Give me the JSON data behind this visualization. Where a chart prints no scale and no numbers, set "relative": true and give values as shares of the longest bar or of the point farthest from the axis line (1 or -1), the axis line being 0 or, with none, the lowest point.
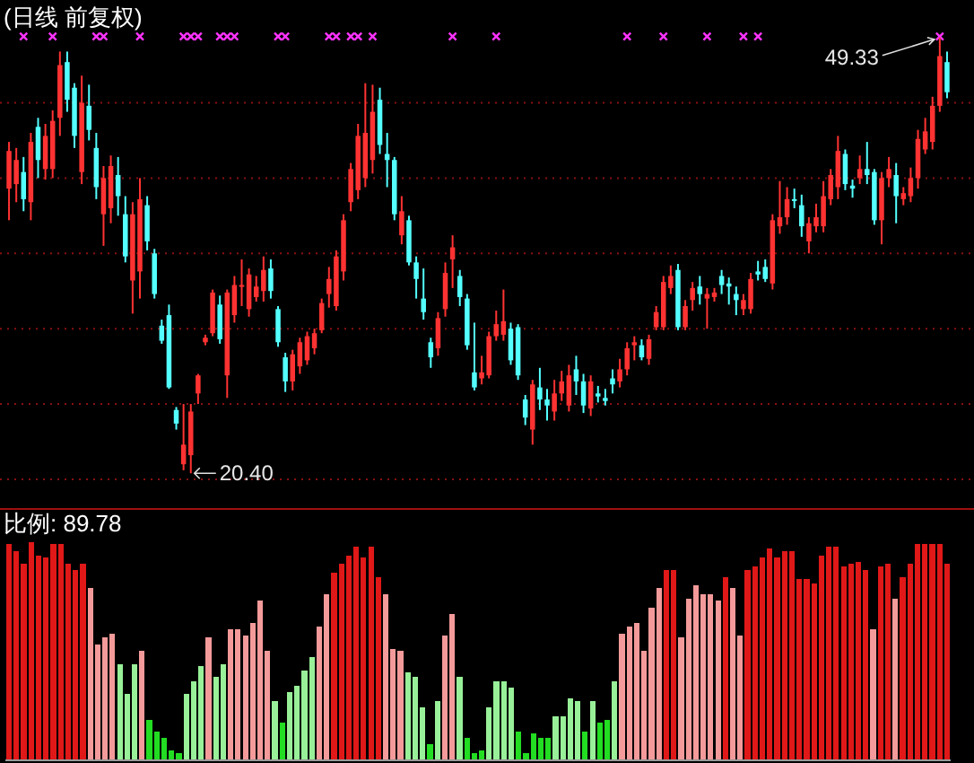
{
  "chart_data": [
    {
      "type": "candlestick",
      "title": "(日线 前复权)",
      "categories": [
        null,
        null,
        null,
        null,
        null,
        null,
        null,
        null,
        null,
        null,
        null,
        null,
        null,
        null,
        null,
        null,
        null,
        null,
        null,
        null,
        null,
        null,
        null,
        null,
        null,
        null,
        null,
        null,
        null,
        null,
        null,
        null,
        null,
        null,
        null,
        null,
        null,
        null,
        null,
        null,
        null,
        null,
        null,
        null,
        null,
        null,
        null,
        null,
        null,
        null,
        null,
        null,
        null,
        null,
        null,
        null,
        null,
        null,
        null,
        null,
        null,
        null,
        null,
        null,
        null,
        null,
        null,
        null,
        null,
        null,
        null,
        null,
        null,
        null,
        null,
        null,
        null,
        null,
        null,
        null,
        null,
        null,
        null,
        null,
        null,
        null,
        null,
        null,
        null,
        null,
        null,
        null,
        null,
        null,
        null,
        null,
        null,
        null,
        null,
        null,
        null,
        null,
        null,
        null,
        null,
        null,
        null,
        null,
        null,
        null,
        null,
        null,
        null,
        null,
        null,
        null,
        null,
        null,
        null,
        null,
        null,
        null,
        null,
        null,
        null,
        null,
        null,
        null,
        null,
        null
      ],
      "ohlc": [
        [
          39.3,
          42.4,
          37.2,
          41.8
        ],
        [
          39.6,
          42,
          38.4,
          41.2
        ],
        [
          40.4,
          41.4,
          37.8,
          38.6
        ],
        [
          38.4,
          43,
          37.2,
          42.4
        ],
        [
          43.4,
          44,
          40,
          41.2
        ],
        [
          40.6,
          43.6,
          39.9,
          42.8
        ],
        [
          40.6,
          44.5,
          40,
          43.8
        ],
        [
          44,
          48.4,
          42.8,
          47.5
        ],
        [
          47.7,
          48.4,
          44.4,
          45.2
        ],
        [
          46,
          46.3,
          42,
          42.8
        ],
        [
          40.4,
          46.8,
          39.6,
          45
        ],
        [
          44.8,
          46.2,
          42.5,
          43.2
        ],
        [
          42,
          43,
          38.6,
          39.4
        ],
        [
          37.6,
          40.8,
          35.5,
          40
        ],
        [
          38,
          41.5,
          37,
          40.8
        ],
        [
          40.2,
          41.4,
          37.5,
          38.8
        ],
        [
          37.6,
          38.8,
          34.4,
          34.8
        ],
        [
          33.2,
          38.4,
          31,
          37.6
        ],
        [
          33.8,
          40,
          32,
          38.6
        ],
        [
          38.2,
          38.8,
          35.2,
          35.8
        ],
        [
          35,
          35.3,
          32,
          32.3
        ],
        [
          30.2,
          30.6,
          29,
          29.2
        ],
        [
          30.9,
          31.6,
          26,
          26.1
        ],
        [
          24.6,
          24.8,
          23.3,
          23.7
        ],
        [
          21,
          25,
          20.6,
          22.3
        ],
        [
          21.6,
          25,
          20.4,
          24.5
        ],
        [
          25.7,
          27,
          25,
          26.9
        ],
        [
          29.1,
          29.6,
          28.9,
          29.4
        ],
        [
          29.7,
          32.6,
          29.5,
          32.4
        ],
        [
          31.6,
          32.2,
          29,
          29.3
        ],
        [
          26.9,
          32.6,
          25.4,
          32.4
        ],
        [
          30.9,
          33.5,
          30.4,
          32.9
        ],
        [
          32.8,
          34.6,
          31.5,
          32.9
        ],
        [
          31.3,
          34,
          30.8,
          33.6
        ],
        [
          32.1,
          33.5,
          31.8,
          32.8
        ],
        [
          32.5,
          34.8,
          31.8,
          33.9
        ],
        [
          34,
          34.6,
          32,
          32.5
        ],
        [
          31.3,
          31.5,
          28.8,
          29.1
        ],
        [
          28.1,
          28.4,
          25.8,
          26.5
        ],
        [
          26.5,
          28.6,
          25.9,
          28.3
        ],
        [
          27.5,
          29.4,
          27,
          29.1
        ],
        [
          27.9,
          29.8,
          27.6,
          29.5
        ],
        [
          28.7,
          30,
          28.3,
          29.7
        ],
        [
          29.9,
          32,
          29.7,
          31.7
        ],
        [
          32.3,
          34.1,
          31.4,
          33.3
        ],
        [
          31.5,
          35.2,
          31.2,
          34.8
        ],
        [
          33.8,
          37.6,
          33.2,
          37.2
        ],
        [
          38.4,
          41,
          37.8,
          40.6
        ],
        [
          39.2,
          43.6,
          38.6,
          42.8
        ],
        [
          40,
          46.3,
          39.4,
          43
        ],
        [
          41.2,
          46.2,
          40.3,
          44.4
        ],
        [
          45.2,
          46,
          41.6,
          42.2
        ],
        [
          41.6,
          43,
          39.4,
          41.2
        ],
        [
          41.2,
          41.4,
          37.2,
          37.6
        ],
        [
          36.2,
          38.8,
          35.6,
          37.8
        ],
        [
          37.2,
          37.5,
          34.2,
          34.4
        ],
        [
          34.4,
          34.8,
          32,
          33.3
        ],
        [
          32,
          34,
          30.6,
          31.1
        ],
        [
          29.1,
          29.4,
          27.4,
          28.1
        ],
        [
          28.7,
          31.1,
          28.2,
          30.7
        ],
        [
          31.3,
          34.4,
          30.8,
          33.7
        ],
        [
          34.6,
          36.2,
          32.7,
          35.4
        ],
        [
          33.5,
          33.9,
          31.5,
          32.1
        ],
        [
          32,
          32.3,
          28.6,
          28.9
        ],
        [
          27.1,
          30.4,
          25.9,
          26.1
        ],
        [
          26.7,
          28.2,
          26.3,
          27.1
        ],
        [
          26.9,
          29.8,
          26.7,
          29.5
        ],
        [
          29.5,
          31.2,
          29.2,
          30.3
        ],
        [
          29.6,
          32.6,
          29.2,
          30.5
        ],
        [
          30,
          30.4,
          27.6,
          27.9
        ],
        [
          30.1,
          30.3,
          26.6,
          26.9
        ],
        [
          25.3,
          25.6,
          23.6,
          24.1
        ],
        [
          23.3,
          26.6,
          22.3,
          26.3
        ],
        [
          26.1,
          27.4,
          24.6,
          25.3
        ],
        [
          25.3,
          26,
          23.9,
          24.9
        ],
        [
          24.5,
          26.6,
          23.9,
          25.7
        ],
        [
          25.7,
          27.2,
          25.2,
          26.5
        ],
        [
          24.9,
          27.6,
          24.5,
          26.9
        ],
        [
          27.3,
          28.2,
          25.6,
          26.5
        ],
        [
          26.5,
          27,
          24.4,
          24.9
        ],
        [
          24.7,
          26.9,
          24.2,
          26.5
        ],
        [
          25.7,
          26.2,
          25.1,
          25.5
        ],
        [
          25.4,
          26,
          24.9,
          25.2
        ],
        [
          26.7,
          27.3,
          25.7,
          26.3
        ],
        [
          26.5,
          28,
          26.1,
          27.3
        ],
        [
          27.3,
          29.1,
          26.9,
          28.7
        ],
        [
          28.9,
          29.5,
          27.9,
          29.1
        ],
        [
          28.9,
          29.3,
          27.9,
          28.1
        ],
        [
          28,
          29.6,
          27.6,
          29.3
        ],
        [
          30.1,
          31.5,
          29.9,
          31.1
        ],
        [
          30.1,
          33.5,
          29.9,
          33.1
        ],
        [
          32.7,
          34.2,
          32.3,
          33.5
        ],
        [
          33.9,
          34.3,
          29.9,
          30.1
        ],
        [
          30.1,
          31.9,
          29.9,
          31.5
        ],
        [
          31.9,
          33.1,
          31.2,
          32.7
        ],
        [
          32.8,
          33.5,
          31.6,
          32.3
        ],
        [
          32,
          32.7,
          30,
          32.3
        ],
        [
          32.1,
          32.7,
          31.8,
          32.4
        ],
        [
          33.5,
          33.9,
          32.3,
          32.9
        ],
        [
          33,
          33.4,
          31.6,
          32.8
        ],
        [
          32.3,
          32.8,
          30.9,
          31.9
        ],
        [
          31.3,
          32.3,
          30.9,
          31.9
        ],
        [
          31.3,
          33.7,
          31,
          33.3
        ],
        [
          33.8,
          34.5,
          33.2,
          33.6
        ],
        [
          34.1,
          34.6,
          33.1,
          33.3
        ],
        [
          33,
          37.6,
          32.6,
          37.2
        ],
        [
          36.8,
          39.8,
          36.3,
          37.4
        ],
        [
          37.4,
          39.4,
          36.9,
          38.6
        ],
        [
          38.6,
          39.3,
          38,
          38.5
        ],
        [
          38.2,
          38.9,
          36.1,
          36.8
        ],
        [
          35.8,
          37.4,
          35,
          37
        ],
        [
          36.8,
          38.3,
          36.4,
          37.4
        ],
        [
          36.8,
          39.8,
          36.4,
          38.8
        ],
        [
          38.6,
          40.6,
          38.2,
          40.2
        ],
        [
          39.4,
          42.8,
          38.6,
          41.8
        ],
        [
          41.6,
          41.9,
          39.2,
          39.6
        ],
        [
          39.5,
          39.9,
          38.7,
          39.3
        ],
        [
          40,
          41.5,
          39.6,
          40.6
        ],
        [
          40.6,
          42.4,
          39.6,
          40.2
        ],
        [
          40.4,
          40.6,
          36.9,
          37.2
        ],
        [
          37.2,
          40.4,
          35.6,
          40
        ],
        [
          40,
          41.4,
          39.4,
          40.6
        ],
        [
          40.2,
          41,
          37,
          38.8
        ],
        [
          38.6,
          39.4,
          38.2,
          39
        ],
        [
          38.8,
          40.7,
          38.4,
          40
        ],
        [
          40,
          43.2,
          39.3,
          42.6
        ],
        [
          41.9,
          44,
          41.6,
          43.1
        ],
        [
          42.4,
          45.4,
          41.9,
          44.8
        ],
        [
          44.8,
          49.33,
          44.4,
          48.1
        ],
        [
          47.7,
          48.4,
          45.3,
          45.7
        ]
      ],
      "yticks": [
        {
          "value": 20,
          "label": null
        },
        {
          "value": 25,
          "label": null
        },
        {
          "value": 30,
          "label": null
        },
        {
          "value": 35,
          "label": null
        },
        {
          "value": 40,
          "label": null
        },
        {
          "value": 45,
          "label": null
        }
      ],
      "grid": "y",
      "annotations": [
        "49.33",
        "20.40"
      ],
      "series": [
        {
          "type": "scatter",
          "color": "#ff33ff",
          "marker": "cross",
          "values": [
            null,
            null,
            49.4,
            null,
            null,
            null,
            49.4,
            null,
            null,
            null,
            null,
            null,
            49.4,
            49.4,
            null,
            null,
            null,
            null,
            49.4,
            null,
            null,
            null,
            null,
            null,
            49.4,
            49.4,
            49.4,
            null,
            null,
            49.4,
            49.4,
            49.4,
            null,
            null,
            null,
            null,
            null,
            49.4,
            49.4,
            null,
            null,
            null,
            null,
            null,
            49.4,
            49.4,
            null,
            49.4,
            49.4,
            null,
            49.4,
            null,
            null,
            null,
            null,
            null,
            null,
            null,
            null,
            null,
            null,
            49.4,
            null,
            null,
            null,
            null,
            null,
            49.4,
            null,
            null,
            null,
            null,
            null,
            null,
            null,
            null,
            null,
            null,
            null,
            null,
            null,
            null,
            null,
            null,
            null,
            49.4,
            null,
            null,
            null,
            null,
            49.4,
            null,
            null,
            null,
            null,
            null,
            49.4,
            null,
            null,
            null,
            null,
            49.4,
            null,
            49.4,
            null,
            null,
            null,
            null,
            null,
            null,
            null,
            null,
            null,
            null,
            null,
            null,
            null,
            null,
            null,
            null,
            null,
            null,
            null,
            null,
            null,
            null,
            null,
            null,
            49.4,
            null
          ]
        }
      ]
    },
    {
      "type": "bar",
      "title": "比例: 89.78",
      "relative": true,
      "categories": [
        null,
        null,
        null,
        null,
        null,
        null,
        null,
        null,
        null,
        null,
        null,
        null,
        null,
        null,
        null,
        null,
        null,
        null,
        null,
        null,
        null,
        null,
        null,
        null,
        null,
        null,
        null,
        null,
        null,
        null,
        null,
        null,
        null,
        null,
        null,
        null,
        null,
        null,
        null,
        null,
        null,
        null,
        null,
        null,
        null,
        null,
        null,
        null,
        null,
        null,
        null,
        null,
        null,
        null,
        null,
        null,
        null,
        null,
        null,
        null,
        null,
        null,
        null,
        null,
        null,
        null,
        null,
        null,
        null,
        null,
        null,
        null,
        null,
        null,
        null,
        null,
        null,
        null,
        null,
        null,
        null,
        null,
        null,
        null,
        null,
        null,
        null,
        null,
        null,
        null,
        null,
        null,
        null,
        null,
        null,
        null,
        null,
        null,
        null,
        null,
        null,
        null,
        null,
        null,
        null,
        null,
        null,
        null,
        null,
        null,
        null,
        null,
        null,
        null,
        null,
        null,
        null,
        null,
        null,
        null,
        null,
        null,
        null,
        null,
        null,
        null,
        null,
        null
      ],
      "series": [
        {
          "type": "bar",
          "values": [
            0.99,
            0.96,
            0.9,
            1.0,
            0.94,
            0.93,
            0.99,
            0.99,
            0.9,
            0.87,
            0.9,
            0.79,
            0.53,
            0.56,
            0.58,
            0.44,
            0.3,
            0.44,
            0.5,
            0.18,
            0.13,
            0.1,
            0.04,
            0.03,
            0.3,
            0.36,
            0.43,
            0.56,
            0.38,
            0.44,
            0.6,
            0.6,
            0.57,
            0.63,
            0.73,
            0.5,
            0.27,
            0.17,
            0.31,
            0.34,
            0.41,
            0.47,
            0.61,
            0.76,
            0.86,
            0.9,
            0.94,
            0.98,
            0.93,
            0.98,
            0.84,
            0.76,
            0.51,
            0.5,
            0.4,
            0.38,
            0.24,
            0.07,
            0.27,
            0.57,
            0.67,
            0.38,
            0.1,
            0.03,
            0.04,
            0.24,
            0.36,
            0.36,
            0.33,
            0.13,
            0.03,
            0.12,
            0.1,
            0.1,
            0.2,
            0.2,
            0.28,
            0.27,
            0.13,
            0.27,
            0.17,
            0.18,
            0.36,
            0.58,
            0.61,
            0.63,
            0.5,
            0.7,
            0.79,
            0.87,
            0.87,
            0.56,
            0.74,
            0.8,
            0.76,
            0.76,
            0.73,
            0.84,
            0.79,
            0.57,
            0.87,
            0.89,
            0.93,
            0.97,
            0.93,
            0.96,
            0.96,
            0.83,
            0.83,
            0.81,
            0.94,
            0.98,
            0.98,
            0.89,
            0.9,
            0.91,
            0.87,
            0.6,
            0.89,
            0.9,
            0.74,
            0.84,
            0.9,
            0.99,
            0.99,
            0.99,
            0.99,
            0.9
          ],
          "colors": [
            "#e01818",
            "#e01818",
            "#e01818",
            "#e01818",
            "#e01818",
            "#e01818",
            "#e01818",
            "#e01818",
            "#e01818",
            "#e01818",
            "#e01818",
            "#f49a9a",
            "#f49a9a",
            "#f49a9a",
            "#f49a9a",
            "#98f098",
            "#98f098",
            "#98f098",
            "#f49a9a",
            "#22dd22",
            "#22dd22",
            "#22dd22",
            "#22dd22",
            "#22dd22",
            "#98f098",
            "#98f098",
            "#98f098",
            "#f49a9a",
            "#98f098",
            "#98f098",
            "#f49a9a",
            "#f49a9a",
            "#f49a9a",
            "#f49a9a",
            "#f49a9a",
            "#f49a9a",
            "#98f098",
            "#22dd22",
            "#98f098",
            "#98f098",
            "#98f098",
            "#98f098",
            "#f49a9a",
            "#f49a9a",
            "#e01818",
            "#e01818",
            "#e01818",
            "#e01818",
            "#e01818",
            "#e01818",
            "#e01818",
            "#f49a9a",
            "#f49a9a",
            "#f49a9a",
            "#98f098",
            "#98f098",
            "#98f098",
            "#22dd22",
            "#98f098",
            "#f49a9a",
            "#f49a9a",
            "#98f098",
            "#22dd22",
            "#22dd22",
            "#22dd22",
            "#98f098",
            "#98f098",
            "#98f098",
            "#98f098",
            "#22dd22",
            "#22dd22",
            "#22dd22",
            "#22dd22",
            "#22dd22",
            "#98f098",
            "#98f098",
            "#98f098",
            "#98f098",
            "#22dd22",
            "#98f098",
            "#22dd22",
            "#22dd22",
            "#98f098",
            "#f49a9a",
            "#f49a9a",
            "#f49a9a",
            "#f49a9a",
            "#f49a9a",
            "#f49a9a",
            "#e01818",
            "#e01818",
            "#f49a9a",
            "#f49a9a",
            "#f49a9a",
            "#f49a9a",
            "#f49a9a",
            "#f49a9a",
            "#e01818",
            "#f49a9a",
            "#f49a9a",
            "#e01818",
            "#e01818",
            "#e01818",
            "#e01818",
            "#e01818",
            "#e01818",
            "#e01818",
            "#e01818",
            "#e01818",
            "#e01818",
            "#e01818",
            "#e01818",
            "#e01818",
            "#e01818",
            "#e01818",
            "#e01818",
            "#e01818",
            "#f49a9a",
            "#e01818",
            "#e01818",
            "#f49a9a",
            "#e01818",
            "#e01818",
            "#e01818",
            "#e01818",
            "#e01818",
            "#e01818",
            "#e01818"
          ]
        }
      ]
    }
  ]
}
